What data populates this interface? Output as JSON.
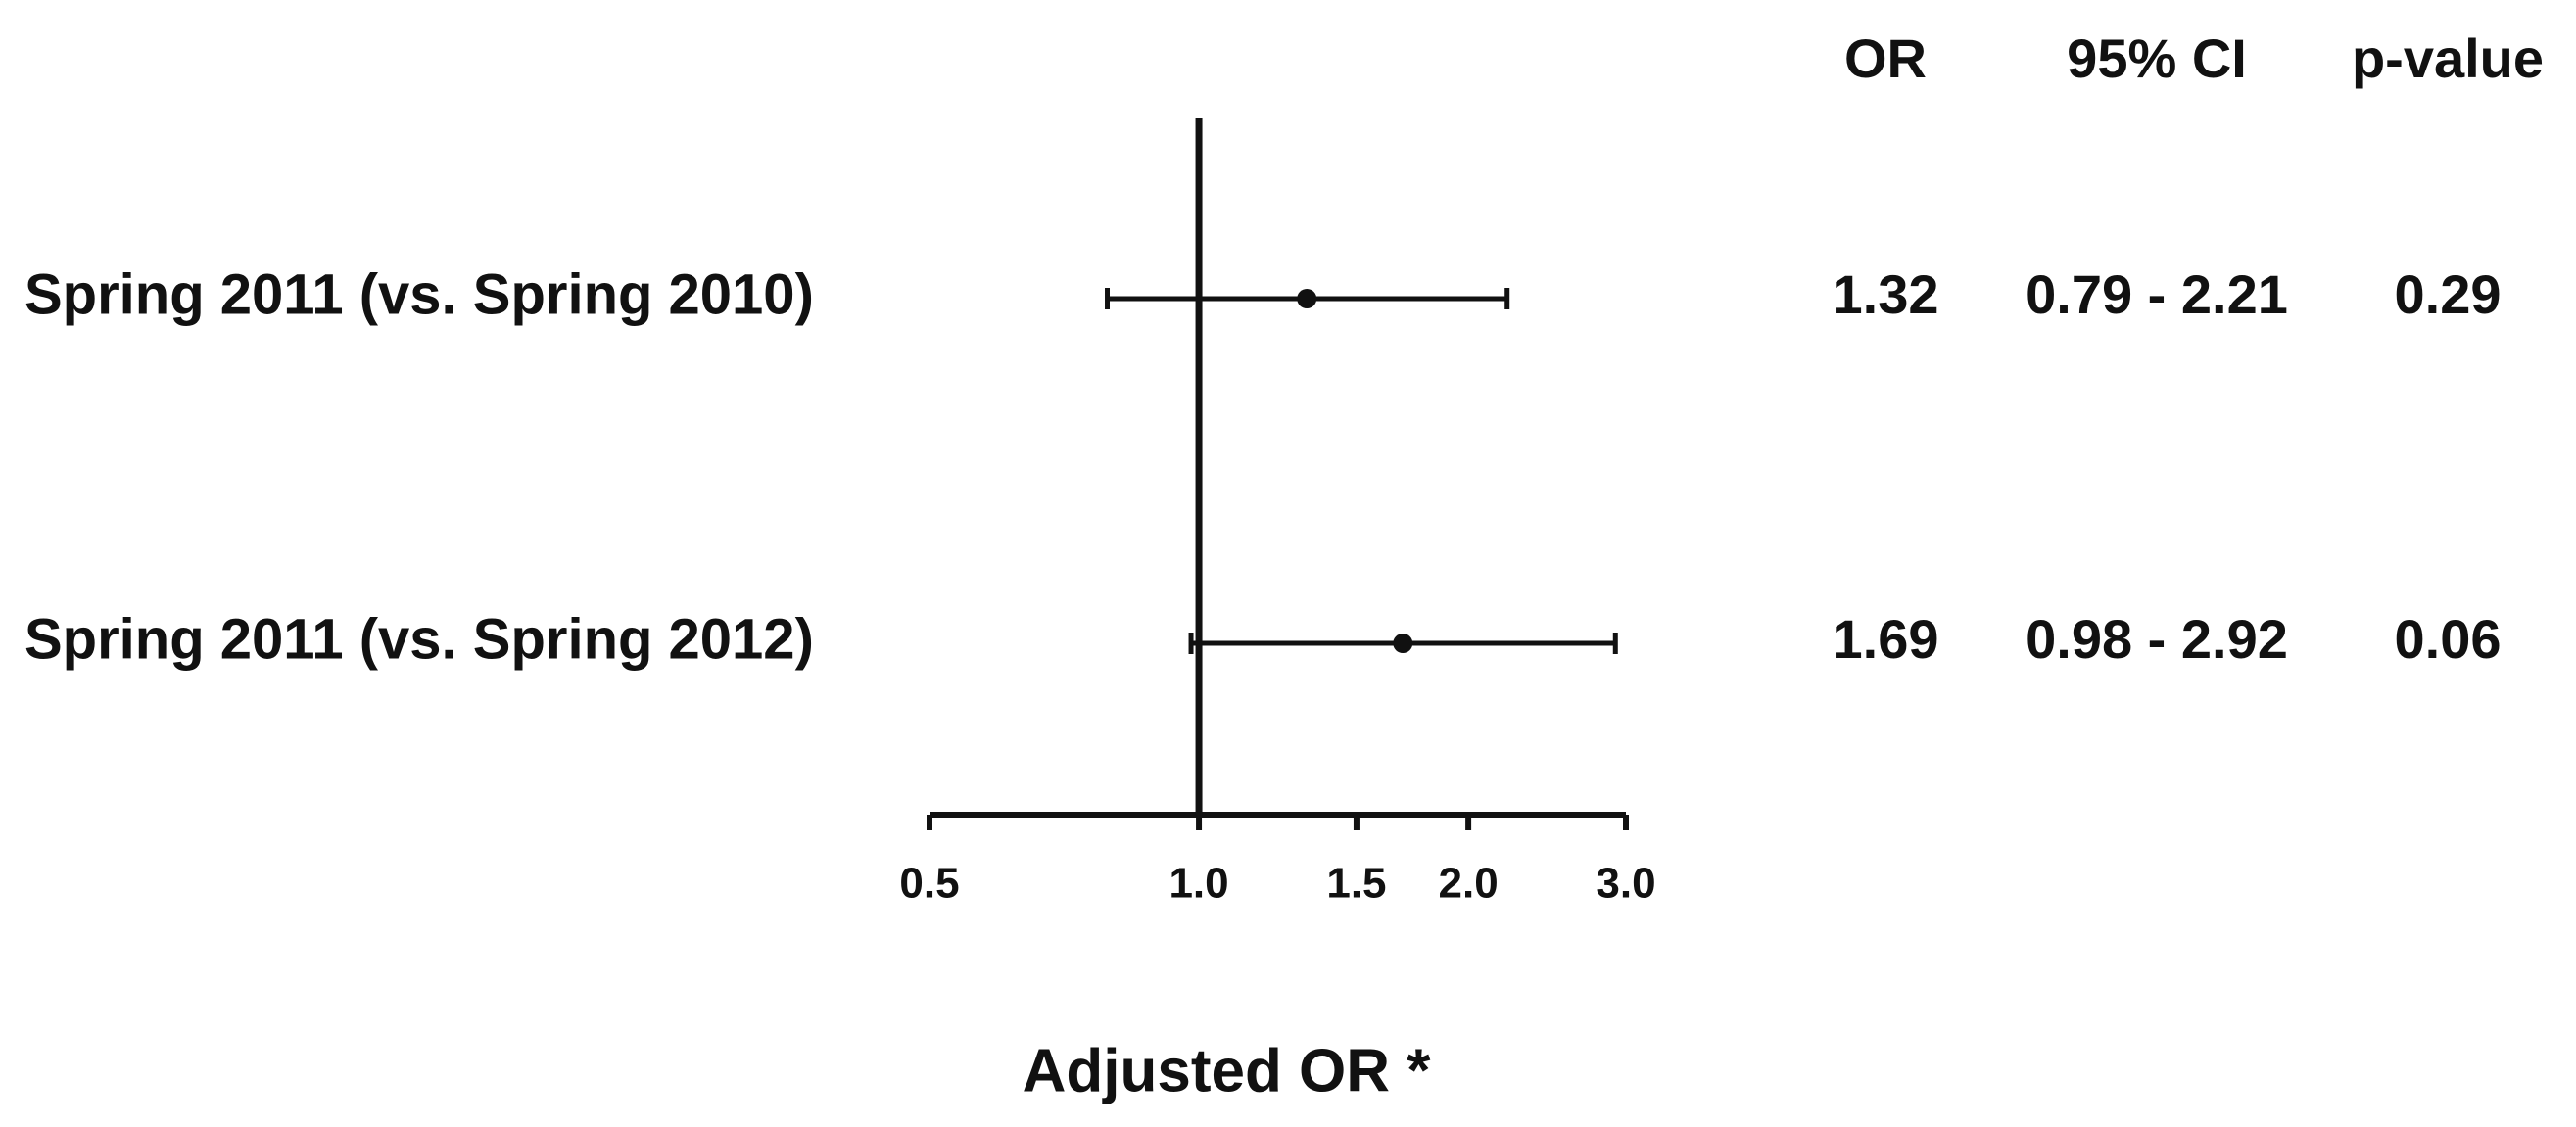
{
  "chart_data": {
    "type": "forest",
    "categories": [
      "Spring 2011 (vs. Spring 2010)",
      "Spring 2011 (vs. Spring 2012)"
    ],
    "values": [
      1.32,
      1.69
    ],
    "lower": [
      0.79,
      0.98
    ],
    "upper": [
      2.21,
      2.92
    ],
    "columns": [
      "OR",
      "95% CI",
      "p-value"
    ],
    "ci_labels": [
      "0.79 - 2.21",
      "0.98 - 2.92"
    ],
    "p_values": [
      0.29,
      0.06
    ],
    "xlabel": "Adjusted OR *",
    "xscale": "log",
    "xlim": [
      0.5,
      3.0
    ],
    "xticks": [
      0.5,
      {
        "value": 1,
        "label": "1.0"
      },
      1.5,
      {
        "value": 2,
        "label": "2.0"
      },
      {
        "value": 3,
        "label": "3.0"
      }
    ],
    "color": "#111111"
  }
}
